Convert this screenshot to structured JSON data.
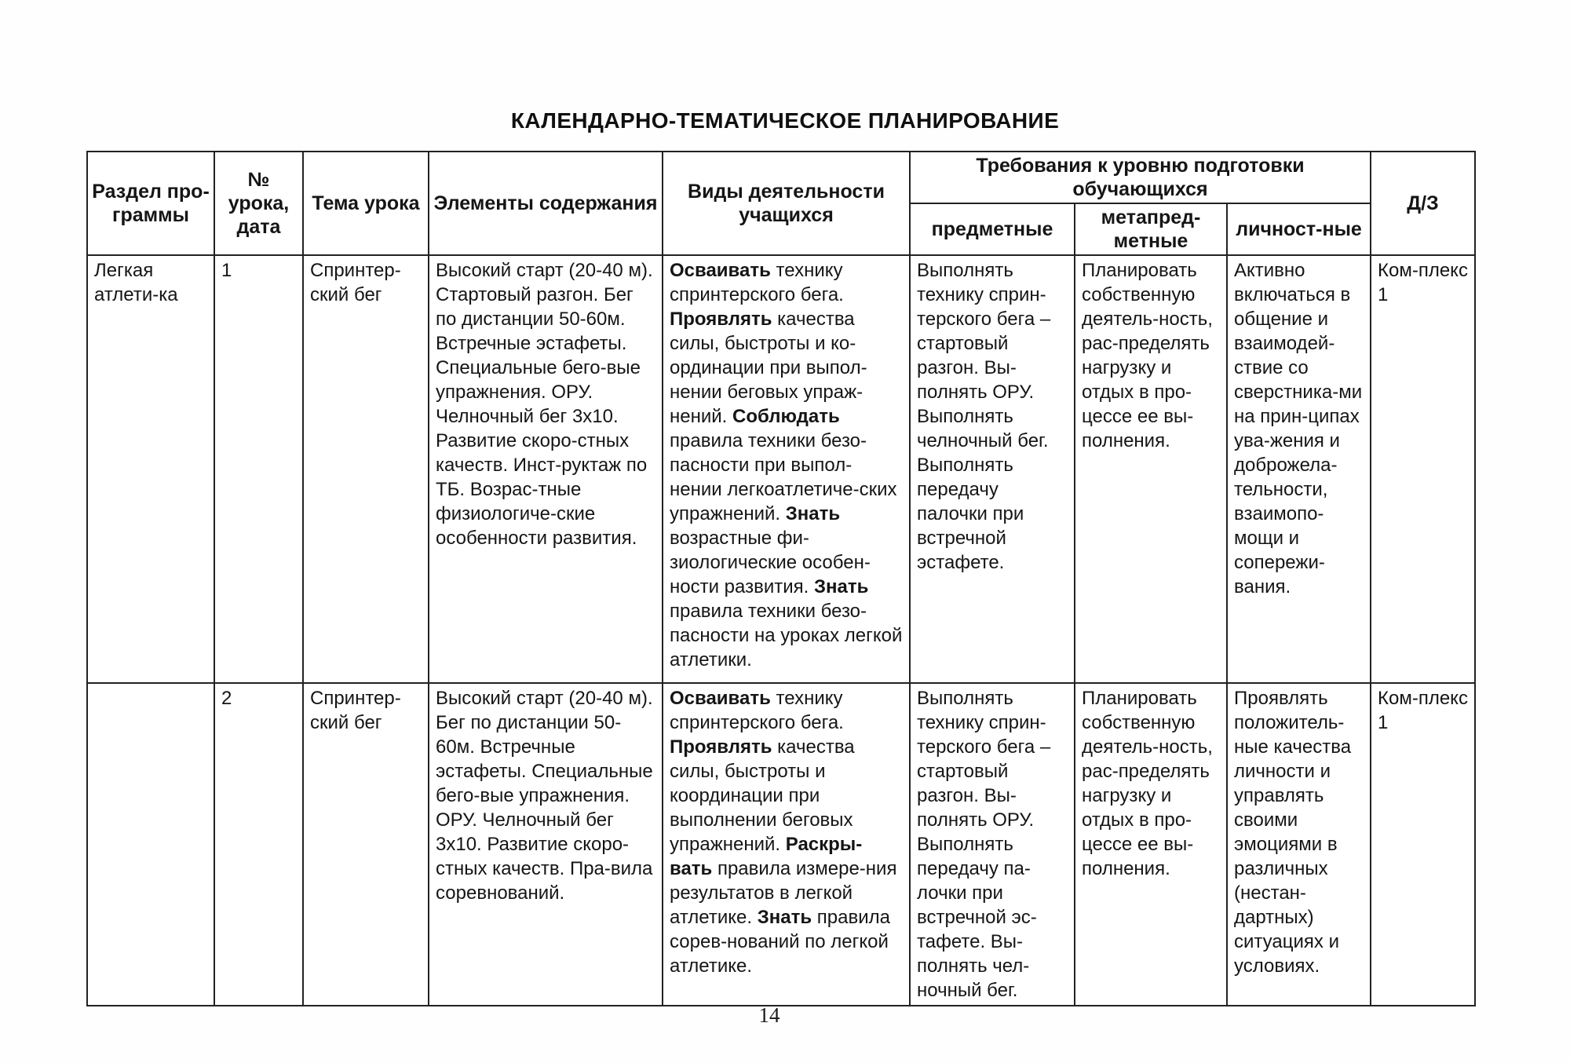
{
  "page": {
    "title": "КАЛЕНДАРНО-ТЕМАТИЧЕСКОЕ ПЛАНИРОВАНИЕ",
    "page_number": "14"
  },
  "table": {
    "headers": {
      "section": "Раздел про-граммы",
      "lesson_no": "№ урока, дата",
      "topic": "Тема урока",
      "content": "Элементы содержания",
      "activities": "Виды деятельности учащихся",
      "requirements_group": "Требования к уровню подготовки обучающихся",
      "subject": "предметные",
      "meta_subject": "метапред-метные",
      "personal": "личност-ные",
      "homework": "Д/З"
    },
    "rows": [
      {
        "section": "Легкая атлети-ка",
        "lesson_no": "1",
        "topic": "Спринтер-ский бег",
        "content": "Высокий старт (20-40 м). Стартовый разгон. Бег по дистанции 50-60м. Встречные эстафеты. Специальные бего-вые упражнения. ОРУ. Челночный бег 3х10. Развитие скоро-стных качеств. Инст-руктаж по ТБ. Возрас-тные физиологиче-ские особенности развития.",
        "activities": [
          {
            "text": "Осваивать",
            "bold": true
          },
          {
            "text": " технику спринтерского бега. ",
            "bold": false
          },
          {
            "text": "Проявлять",
            "bold": true
          },
          {
            "text": " качества силы, быстроты и ко-ординации при выпол-нении беговых упраж-нений. ",
            "bold": false
          },
          {
            "text": "Соблюдать",
            "bold": true
          },
          {
            "text": " правила техники безо-пасности при выпол-нении легкоатлетиче-ских упражнений. ",
            "bold": false
          },
          {
            "text": "Знать",
            "bold": true
          },
          {
            "text": " возрастные фи-зиологические особен-ности развития. ",
            "bold": false
          },
          {
            "text": "Знать",
            "bold": true
          },
          {
            "text": " правила техники безо-пасности на уроках легкой атлетики.",
            "bold": false
          }
        ],
        "subject": "Выполнять технику сприн-терского бега – стартовый разгон. Вы-полнять ОРУ. Выполнять челночный бег. Выполнять передачу палочки при встречной эстафете.",
        "meta_subject": "Планировать собственную деятель-ность, рас-пределять нагрузку и отдых в про-цессе ее вы-полнения.",
        "personal": "Активно включаться в общение и взаимодей-ствие со сверстника-ми на прин-ципах ува-жения и доброжела-тельности, взаимопо-мощи и сопережи-вания.",
        "homework": "Ком-плекс 1"
      },
      {
        "section": "",
        "lesson_no": "2",
        "topic": "Спринтер-ский бег",
        "content": "Высокий старт (20-40 м). Бег по дистанции 50-60м. Встречные эстафеты. Специальные бего-вые упражнения. ОРУ. Челночный бег 3х10. Развитие скоро-стных качеств. Пра-вила соревнований.",
        "activities": [
          {
            "text": "Осваивать",
            "bold": true
          },
          {
            "text": " технику спринтерского бега. ",
            "bold": false
          },
          {
            "text": "Проявлять",
            "bold": true
          },
          {
            "text": " качества силы, быстроты и координации при выполнении беговых упражнений. ",
            "bold": false
          },
          {
            "text": "Раскры-вать",
            "bold": true
          },
          {
            "text": " правила измере-ния результатов в легкой атлетике. ",
            "bold": false
          },
          {
            "text": "Знать",
            "bold": true
          },
          {
            "text": " правила сорев-нований по легкой атлетике.",
            "bold": false
          }
        ],
        "subject": "Выполнять технику сприн-терского бега – стартовый разгон. Вы-полнять ОРУ. Выполнять передачу па-лочки при встречной эс-тафете. Вы-полнять чел-ночный бег.",
        "meta_subject": "Планировать собственную деятель-ность, рас-пределять нагрузку и отдых в про-цессе ее вы-полнения.",
        "personal": "Проявлять положитель-ные качества личности и управлять своими эмоциями в различных (нестан-дартных) ситуациях и условиях.",
        "homework": "Ком-плекс 1"
      }
    ]
  }
}
